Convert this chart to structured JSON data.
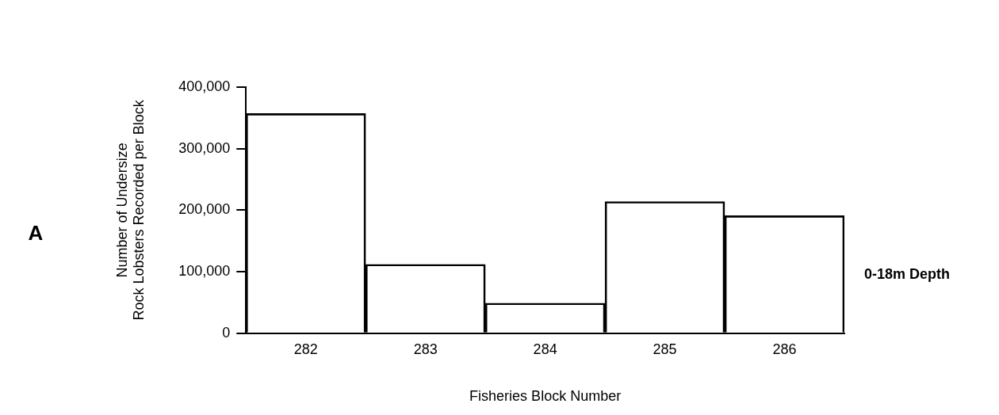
{
  "chart_data": {
    "type": "bar",
    "xlabel": "Fisheries Block Number",
    "ylabel": "Number of Undersize\nRock Lobsters Recorded per Block",
    "categories": [
      "282",
      "283",
      "284",
      "285",
      "286"
    ],
    "values": [
      357000,
      112000,
      49000,
      214000,
      191000
    ],
    "color": "#000000",
    "ylim": [
      0,
      400000
    ],
    "yticks": [
      0,
      {
        "value": 100000,
        "label": "100,000"
      },
      {
        "value": 200000,
        "label": "200,000"
      },
      {
        "value": 300000,
        "label": "300,000"
      },
      {
        "value": 400000,
        "label": "400,000"
      }
    ],
    "grid": false,
    "legend": false,
    "annotations": [
      "A",
      "0-18m Depth"
    ]
  }
}
